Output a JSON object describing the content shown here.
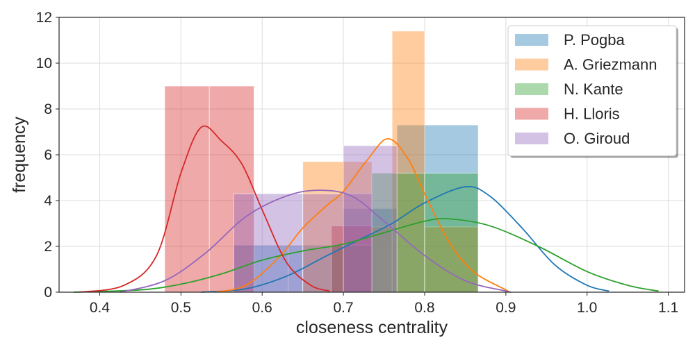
{
  "chart_data": {
    "type": "histogram+kde",
    "title": "",
    "xlabel": "closeness centrality",
    "ylabel": "frequency",
    "xlim": [
      0.35,
      1.12
    ],
    "ylim": [
      0,
      12
    ],
    "xticks": [
      "0.4",
      "0.5",
      "0.6",
      "0.7",
      "0.8",
      "0.9",
      "1.0",
      "1.1"
    ],
    "yticks": [
      "0",
      "2",
      "4",
      "6",
      "8",
      "10",
      "12"
    ],
    "grid": true,
    "legend_position": "top-right",
    "series": [
      {
        "name": "P. Pogba",
        "color": "#1f77b4",
        "bars": [
          {
            "x0": 0.565,
            "x1": 0.632,
            "height": 2.05
          },
          {
            "x0": 0.632,
            "x1": 0.699,
            "height": 2.05
          },
          {
            "x0": 0.699,
            "x1": 0.766,
            "height": 3.65
          },
          {
            "x0": 0.766,
            "x1": 0.866,
            "height": 7.3
          }
        ],
        "kde": [
          [
            0.525,
            0.0
          ],
          [
            0.58,
            0.15
          ],
          [
            0.63,
            0.7
          ],
          [
            0.68,
            1.6
          ],
          [
            0.72,
            2.3
          ],
          [
            0.76,
            3.0
          ],
          [
            0.8,
            3.9
          ],
          [
            0.85,
            4.6
          ],
          [
            0.88,
            4.2
          ],
          [
            0.92,
            2.8
          ],
          [
            0.96,
            1.2
          ],
          [
            1.0,
            0.3
          ],
          [
            1.027,
            0.05
          ]
        ]
      },
      {
        "name": "A. Griezmann",
        "color": "#ff7f0e",
        "bars": [
          {
            "x0": 0.65,
            "x1": 0.735,
            "height": 5.7
          },
          {
            "x0": 0.735,
            "x1": 0.76,
            "height": 2.85
          },
          {
            "x0": 0.76,
            "x1": 0.8,
            "height": 11.4
          },
          {
            "x0": 0.8,
            "x1": 0.866,
            "height": 2.85
          }
        ],
        "kde": [
          [
            0.542,
            0.0
          ],
          [
            0.58,
            0.3
          ],
          [
            0.62,
            1.5
          ],
          [
            0.65,
            2.8
          ],
          [
            0.68,
            3.8
          ],
          [
            0.7,
            4.4
          ],
          [
            0.73,
            5.8
          ],
          [
            0.755,
            6.7
          ],
          [
            0.78,
            5.8
          ],
          [
            0.8,
            4.3
          ],
          [
            0.83,
            2.2
          ],
          [
            0.86,
            0.9
          ],
          [
            0.9,
            0.1
          ],
          [
            0.905,
            0.0
          ]
        ]
      },
      {
        "name": "N. Kante",
        "color": "#2ca02c",
        "bars": [
          {
            "x0": 0.685,
            "x1": 0.735,
            "height": 2.05
          },
          {
            "x0": 0.735,
            "x1": 0.8,
            "height": 5.2
          },
          {
            "x0": 0.8,
            "x1": 0.866,
            "height": 5.2
          }
        ],
        "kde": [
          [
            0.368,
            0.0
          ],
          [
            0.45,
            0.1
          ],
          [
            0.5,
            0.35
          ],
          [
            0.55,
            0.8
          ],
          [
            0.6,
            1.4
          ],
          [
            0.65,
            1.8
          ],
          [
            0.7,
            2.1
          ],
          [
            0.75,
            2.6
          ],
          [
            0.8,
            3.1
          ],
          [
            0.83,
            3.2
          ],
          [
            0.88,
            2.9
          ],
          [
            0.94,
            2.0
          ],
          [
            1.0,
            0.9
          ],
          [
            1.05,
            0.3
          ],
          [
            1.088,
            0.05
          ]
        ]
      },
      {
        "name": "H. Lloris",
        "color": "#d62728",
        "bars": [
          {
            "x0": 0.48,
            "x1": 0.535,
            "height": 9.0
          },
          {
            "x0": 0.535,
            "x1": 0.59,
            "height": 9.0
          },
          {
            "x0": 0.685,
            "x1": 0.735,
            "height": 2.9
          }
        ],
        "kde": [
          [
            0.375,
            0.0
          ],
          [
            0.43,
            0.3
          ],
          [
            0.47,
            1.6
          ],
          [
            0.5,
            5.2
          ],
          [
            0.525,
            7.2
          ],
          [
            0.55,
            6.6
          ],
          [
            0.575,
            5.6
          ],
          [
            0.6,
            3.6
          ],
          [
            0.63,
            1.3
          ],
          [
            0.66,
            0.3
          ],
          [
            0.683,
            0.05
          ]
        ]
      },
      {
        "name": "O. Giroud",
        "color": "#9467bd",
        "bars": [
          {
            "x0": 0.565,
            "x1": 0.65,
            "height": 4.3
          },
          {
            "x0": 0.65,
            "x1": 0.735,
            "height": 4.3
          },
          {
            "x0": 0.7,
            "x1": 0.766,
            "height": 6.4
          }
        ],
        "kde": [
          [
            0.425,
            0.0
          ],
          [
            0.48,
            0.5
          ],
          [
            0.53,
            1.7
          ],
          [
            0.58,
            3.3
          ],
          [
            0.63,
            4.2
          ],
          [
            0.67,
            4.45
          ],
          [
            0.71,
            4.2
          ],
          [
            0.75,
            3.1
          ],
          [
            0.8,
            1.6
          ],
          [
            0.85,
            0.5
          ],
          [
            0.9,
            0.05
          ],
          [
            0.905,
            0.0
          ]
        ]
      }
    ]
  }
}
